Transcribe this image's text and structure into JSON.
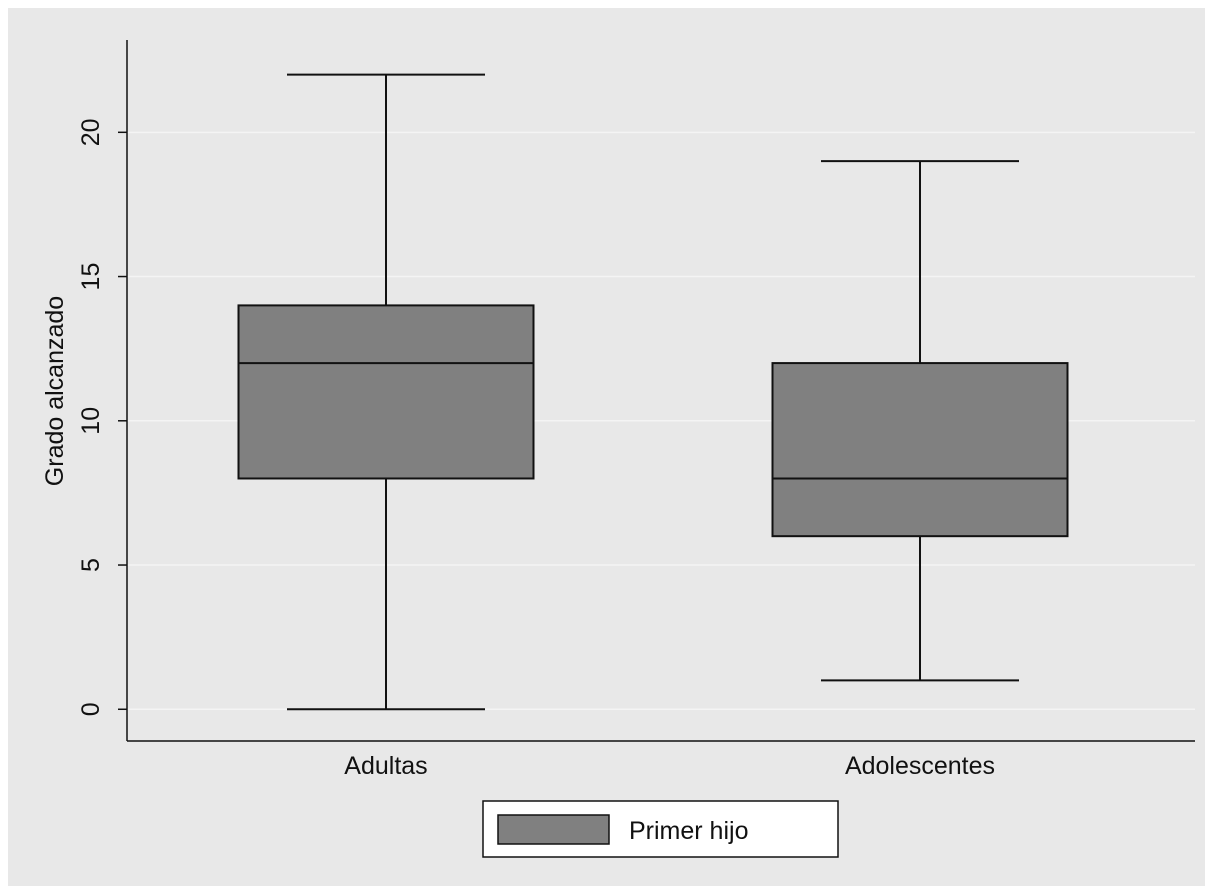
{
  "chart_data": {
    "type": "box",
    "title": "",
    "xlabel": "",
    "ylabel": "Grado alcanzado",
    "ylim": [
      -1.1,
      23.2
    ],
    "yticks": [
      0,
      5,
      10,
      15,
      20
    ],
    "ytick_labels": [
      "0",
      "5",
      "10",
      "15",
      "20"
    ],
    "grid": true,
    "categories": [
      "Adultas",
      "Adolescentes"
    ],
    "series": [
      {
        "name": "Primer hijo",
        "color": "#808080",
        "boxes": [
          {
            "category": "Adultas",
            "whisker_low": 0,
            "q1": 8,
            "median": 12,
            "q3": 14,
            "whisker_high": 22
          },
          {
            "category": "Adolescentes",
            "whisker_low": 1,
            "q1": 6,
            "median": 8,
            "q3": 12,
            "whisker_high": 19
          }
        ]
      }
    ],
    "legend": {
      "position": "bottom",
      "entries": [
        "Primer hijo"
      ]
    },
    "colors": {
      "background": "#e8e8e8",
      "outer": "#ffffff",
      "grid": "#f4f4f4",
      "box_fill": "#808080",
      "line": "#111111"
    }
  }
}
